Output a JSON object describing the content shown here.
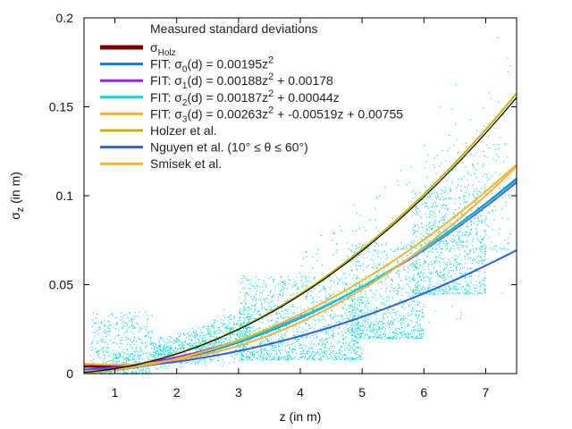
{
  "chart_data": {
    "type": "scatter",
    "title": "",
    "xlabel": "z (in m)",
    "ylabel": "σ_z (in m)",
    "xlim": [
      0.5,
      7.5
    ],
    "ylim": [
      0,
      0.2
    ],
    "xticks": [
      1,
      2,
      3,
      4,
      5,
      6,
      7
    ],
    "yticks": [
      0,
      0.05,
      0.1,
      0.15,
      0.2
    ],
    "xtick_labels": [
      "1",
      "2",
      "3",
      "4",
      "5",
      "6",
      "7"
    ],
    "ytick_labels": [
      "0",
      "0.05",
      "0.1",
      "0.15",
      "0.2"
    ],
    "legend_placement": "top-left",
    "scatter": {
      "name": "Measured standard deviations",
      "color": "#00e5e5",
      "clusters": [
        {
          "x": [
            0.6,
            1.6
          ],
          "y": [
            0.0,
            0.035
          ],
          "count": 450
        },
        {
          "x": [
            1.6,
            3.2
          ],
          "y": [
            0.0,
            0.035
          ],
          "count": 700
        },
        {
          "x": [
            3.0,
            5.0
          ],
          "y": [
            0.008,
            0.055
          ],
          "count": 1100
        },
        {
          "x": [
            4.8,
            6.0
          ],
          "y": [
            0.02,
            0.075
          ],
          "count": 700
        },
        {
          "x": [
            5.8,
            7.0
          ],
          "y": [
            0.045,
            0.105
          ],
          "count": 700
        },
        {
          "x": [
            6.0,
            7.4
          ],
          "y": [
            0.07,
            0.13
          ],
          "count": 250
        },
        {
          "x": [
            1.0,
            7.4
          ],
          "y": [
            0.0,
            0.2
          ],
          "count": 500
        }
      ]
    },
    "series": [
      {
        "name": "σ_Holz",
        "color": "#800000",
        "formula": "0.0029*z^2",
        "width": 3,
        "visible": false
      },
      {
        "name": "FIT: σ_0(d) = 0.00195z^2",
        "color": "#0a7fd9",
        "coef": [
          0.00195,
          0,
          0
        ],
        "width": 2
      },
      {
        "name": "FIT: σ_1(d) = 0.00188z^2 + 0.00178",
        "color": "#a020f0",
        "coef": [
          0.00188,
          0,
          0.00178
        ],
        "width": 2
      },
      {
        "name": "FIT: σ_2(d) = 0.00187z^2 + 0.00044z",
        "color": "#00dcdc",
        "coef": [
          0.00187,
          0.00044,
          0
        ],
        "width": 2
      },
      {
        "name": "FIT: σ_3(d) = 0.00263z^2 + -0.00519z + 0.00755",
        "color": "#ffb030",
        "coef": [
          0.00263,
          -0.00519,
          0.00755
        ],
        "width": 2
      },
      {
        "name": "Holzer et al.",
        "color": "#c8b400",
        "coef": [
          0.0028,
          0,
          0
        ],
        "width": 2
      },
      {
        "name": "Nguyen et al. (10° ≤ θ ≤ 60°)",
        "color": "#3060e0",
        "coef": [
          0.0012,
          0,
          0.0019
        ],
        "extra": "0.0001/(pi/2-theta)^2 at theta=0.6",
        "width": 2
      },
      {
        "name": "Smisek et al.",
        "color": "#ffb428",
        "coef": [
          0.00209,
          0,
          0
        ],
        "width": 2
      }
    ],
    "measured_black_curve": {
      "color": "#000000",
      "coef": [
        0.00276,
        0,
        0
      ]
    },
    "holz_curve": {
      "color": "#800000",
      "x": [
        0.5,
        1.2
      ],
      "y": [
        0.004,
        0.004
      ]
    }
  },
  "legend": {
    "title": "Measured standard deviations",
    "items": [
      {
        "label": "σ",
        "sub": "Holz",
        "color": "#800000"
      },
      {
        "label": "FIT: σ",
        "sub": "0",
        "rest": "(d) = 0.00195z",
        "sup": "2",
        "tail": "",
        "color": "#0a7fd9"
      },
      {
        "label": "FIT: σ",
        "sub": "1",
        "rest": "(d) = 0.00188z",
        "sup": "2",
        "tail": " + 0.00178",
        "color": "#a020f0"
      },
      {
        "label": "FIT: σ",
        "sub": "2",
        "rest": "(d) = 0.00187z",
        "sup": "2",
        "tail": " + 0.00044z",
        "color": "#00dcdc"
      },
      {
        "label": "FIT: σ",
        "sub": "3",
        "rest": "(d) = 0.00263z",
        "sup": "2",
        "tail": " + -0.00519z + 0.00755",
        "color": "#ffb030"
      },
      {
        "label": "Holzer et al.",
        "color": "#c8b400"
      },
      {
        "label": "Nguyen et al. (10° ≤ θ ≤ 60°)",
        "color": "#3060e0"
      },
      {
        "label": "Smisek et al.",
        "color": "#ffb428"
      }
    ]
  }
}
